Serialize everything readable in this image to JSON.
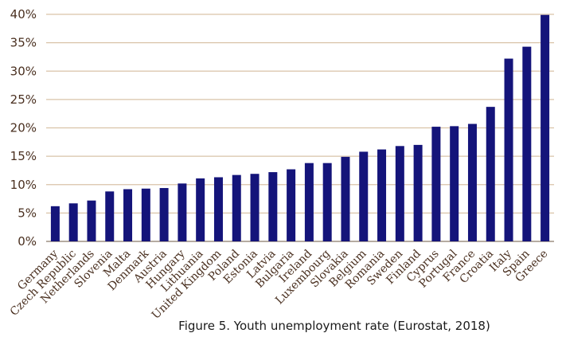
{
  "chart_data": {
    "type": "bar",
    "title": "Figure 5. Youth unemployment rate (Eurostat, 2018)",
    "xlabel": "",
    "ylabel": "",
    "ylim": [
      0,
      40
    ],
    "yticks": [
      "0%",
      "5%",
      "10%",
      "15%",
      "20%",
      "25%",
      "30%",
      "35%",
      "40%"
    ],
    "grid": true,
    "legend": "none",
    "series_color": "#14147a",
    "grid_color": "#d9c3a8",
    "categories": [
      "Germany",
      "Czech Republic",
      "Netherlands",
      "Slovenia",
      "Malta",
      "Denmark",
      "Austria",
      "Hungary",
      "Lithuania",
      "United Kingdom",
      "Poland",
      "Estonia",
      "Latvia",
      "Bulgaria",
      "Ireland",
      "Luxembourg",
      "Slovakia",
      "Belgium",
      "Romania",
      "Sweden",
      "Finland",
      "Cyprus",
      "Portugal",
      "France",
      "Croatia",
      "Italy",
      "Spain",
      "Greece"
    ],
    "values": [
      6.2,
      6.7,
      7.2,
      8.8,
      9.2,
      9.3,
      9.4,
      10.2,
      11.1,
      11.3,
      11.7,
      11.9,
      12.2,
      12.7,
      13.8,
      13.8,
      14.9,
      15.8,
      16.2,
      16.8,
      17.0,
      20.2,
      20.3,
      20.7,
      23.7,
      32.2,
      34.3,
      39.9
    ]
  }
}
